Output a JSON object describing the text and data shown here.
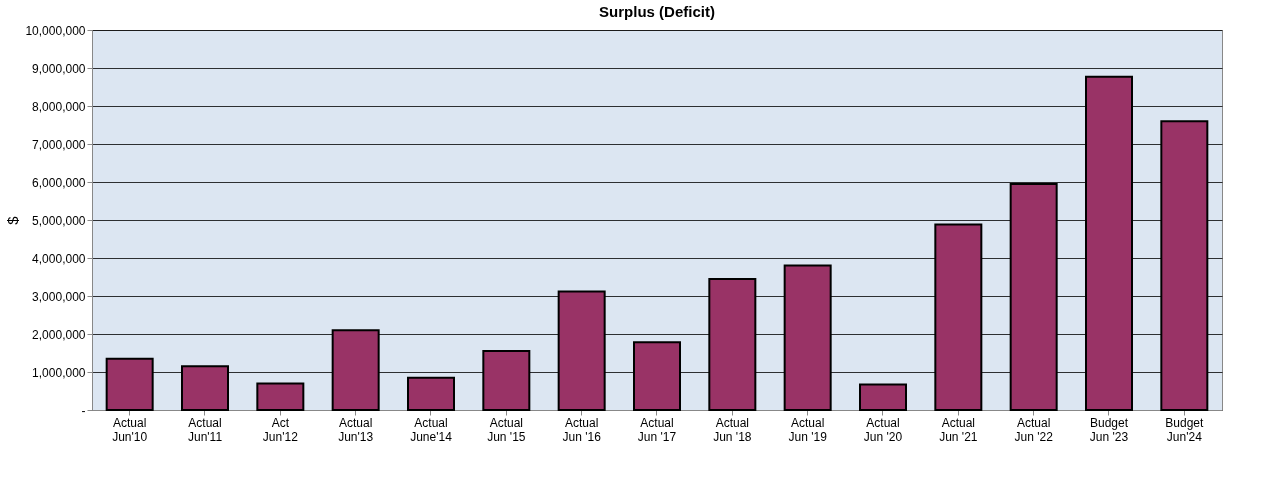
{
  "chart_data": {
    "type": "bar",
    "title": "Surplus (Deficit)",
    "ylabel": "$",
    "categories": [
      "Actual\nJun'10",
      "Actual\nJun'11",
      "Act\nJun'12",
      "Actual\nJun'13",
      "Actual\nJune'14",
      "Actual\nJun '15",
      "Actual\nJun '16",
      "Actual\nJun '17",
      "Actual\nJun '18",
      "Actual\nJun '19",
      "Actual\nJun '20",
      "Actual\nJun '21",
      "Actual\nJun '22",
      "Budget\nJun '23",
      "Budget\nJun'24"
    ],
    "series": [
      {
        "color": "#993366",
        "values": [
          1350000,
          1150000,
          700000,
          2100000,
          850000,
          1550000,
          3120000,
          1780000,
          3450000,
          3800000,
          670000,
          4880000,
          5950000,
          8770000,
          7600000
        ]
      }
    ],
    "ylim": [
      0,
      10000000
    ],
    "yticks": [
      {
        "value": 0,
        "label": "-"
      },
      {
        "value": 1000000,
        "label": "1,000,000"
      },
      {
        "value": 2000000,
        "label": "2,000,000"
      },
      {
        "value": 3000000,
        "label": "3,000,000"
      },
      {
        "value": 4000000,
        "label": "4,000,000"
      },
      {
        "value": 5000000,
        "label": "5,000,000"
      },
      {
        "value": 6000000,
        "label": "6,000,000"
      },
      {
        "value": 7000000,
        "label": "7,000,000"
      },
      {
        "value": 8000000,
        "label": "8,000,000"
      },
      {
        "value": 9000000,
        "label": "9,000,000"
      },
      {
        "value": 10000000,
        "label": "10,000,000"
      }
    ],
    "grid": "y"
  }
}
